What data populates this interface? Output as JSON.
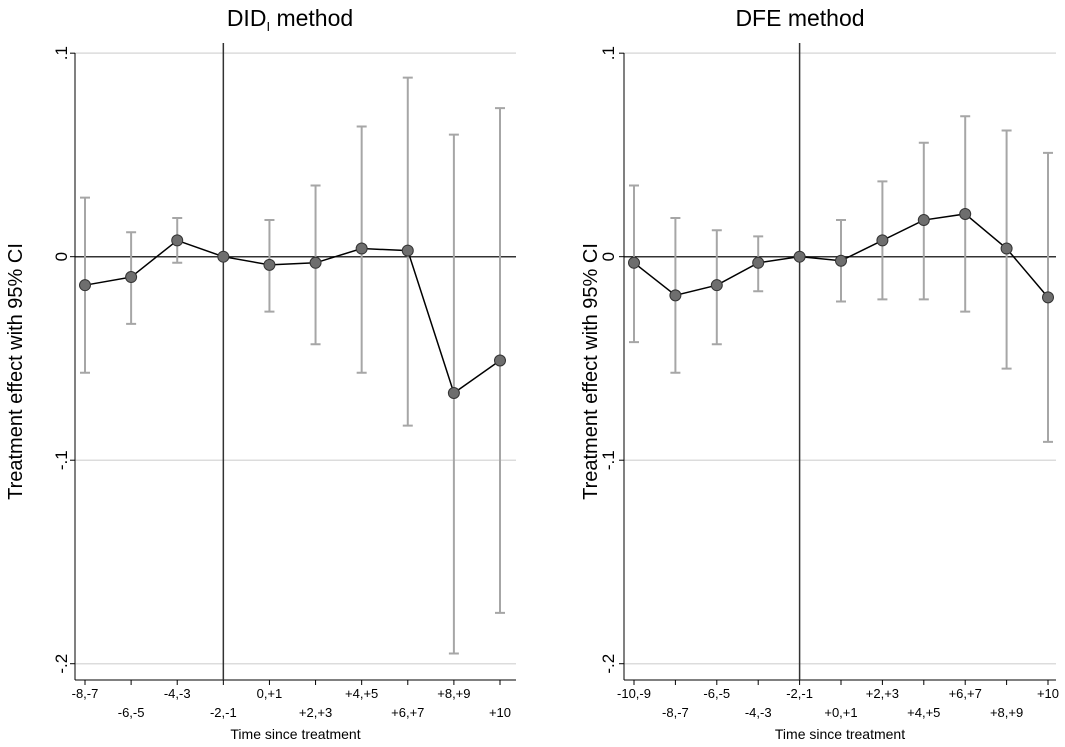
{
  "chart_data": [
    {
      "type": "errorbar-line",
      "title": {
        "main": "DID",
        "subscript": "I",
        "rest": " method"
      },
      "y_label": "Treatment effect with 95% CI",
      "x_label": "Time since treatment",
      "categories": [
        "-8,-7",
        "-6,-5",
        "-4,-3",
        "-2,-1",
        "0,+1",
        "+2,+3",
        "+4,+5",
        "+6,+7",
        "+8,+9",
        "+10"
      ],
      "values": [
        -0.014,
        -0.01,
        0.008,
        0,
        -0.004,
        -0.003,
        0.004,
        0.003,
        -0.067,
        -0.051
      ],
      "lower": [
        -0.057,
        -0.033,
        -0.003,
        null,
        -0.027,
        -0.043,
        -0.057,
        -0.083,
        -0.195,
        -0.175
      ],
      "upper": [
        0.029,
        0.012,
        0.019,
        null,
        0.018,
        0.035,
        0.064,
        0.088,
        0.06,
        0.073
      ],
      "reference_index": 3,
      "ylim": [
        -0.208,
        0.105
      ],
      "yticks": [
        {
          "value": -0.2,
          "label": "-.2"
        },
        {
          "value": -0.1,
          "label": "-.1"
        },
        0,
        {
          "value": 0.1,
          "label": ".1"
        }
      ],
      "grid": true,
      "colors": {
        "line": "#000000",
        "point": "#6e6e6e",
        "ci": "#a6a6a6"
      }
    },
    {
      "type": "errorbar-line",
      "title": {
        "main": "DFE method"
      },
      "y_label": "Treatment effect with 95% CI",
      "x_label": "Time since treatment",
      "categories": [
        "-10,-9",
        "-8,-7",
        "-6,-5",
        "-4,-3",
        "-2,-1",
        "+0,+1",
        "+2,+3",
        "+4,+5",
        "+6,+7",
        "+8,+9",
        "+10"
      ],
      "values": [
        -0.003,
        -0.019,
        -0.014,
        -0.003,
        0,
        -0.002,
        0.008,
        0.018,
        0.021,
        0.004,
        -0.02
      ],
      "lower": [
        -0.042,
        -0.057,
        -0.043,
        -0.017,
        null,
        -0.022,
        -0.021,
        -0.021,
        -0.027,
        -0.055,
        -0.091
      ],
      "upper": [
        0.035,
        0.019,
        0.013,
        0.01,
        null,
        0.018,
        0.037,
        0.056,
        0.069,
        0.062,
        0.051
      ],
      "reference_index": 4,
      "ylim": [
        -0.208,
        0.105
      ],
      "yticks": [
        {
          "value": -0.2,
          "label": "-.2"
        },
        {
          "value": -0.1,
          "label": "-.1"
        },
        0,
        {
          "value": 0.1,
          "label": ".1"
        }
      ],
      "grid": true,
      "colors": {
        "line": "#000000",
        "point": "#6e6e6e",
        "ci": "#a6a6a6"
      }
    }
  ]
}
